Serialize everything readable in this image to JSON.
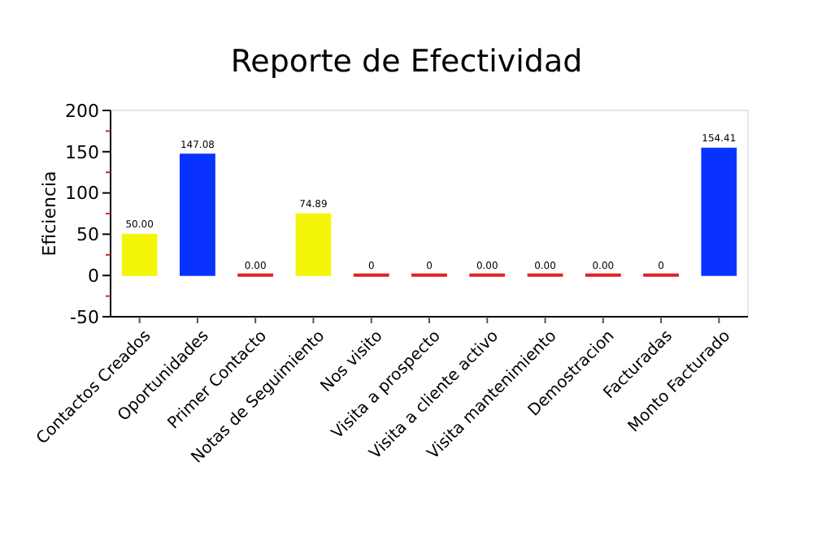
{
  "chart_data": {
    "type": "bar",
    "title": "Reporte de Efectividad",
    "ylabel": "Eficiencia",
    "categories": [
      "Contactos Creados",
      "Oportunidades",
      "Primer Contacto",
      "Notas de Seguimiento",
      "Nos visito",
      "Visita a prospecto",
      "Visita a cliente activo",
      "Visita mantenimiento",
      "Demostracion",
      "Facturadas",
      "Monto Facturado"
    ],
    "values": [
      50,
      147.08,
      0,
      74.89,
      0,
      0,
      0,
      0,
      0,
      0,
      154.41
    ],
    "colors": [
      "#f5f50a",
      "#0a32ff",
      "#e02020",
      "#f5f50a",
      "#e02020",
      "#e02020",
      "#e02020",
      "#e02020",
      "#e02020",
      "#e02020",
      "#0a32ff"
    ],
    "value_labels": [
      "50.00",
      "147.08",
      "0.00",
      "74.89",
      "0",
      "0",
      "0.00",
      "0.00",
      "0.00",
      "0",
      "154.41"
    ],
    "ylim": [
      -50,
      200
    ],
    "yticks": [
      -50,
      {
        "value": -25,
        "label": null
      },
      0,
      {
        "value": 25,
        "label": null
      },
      50,
      {
        "value": 75,
        "label": null
      },
      100,
      {
        "value": 125,
        "label": null
      },
      150,
      {
        "value": 175,
        "label": null
      },
      200
    ]
  }
}
